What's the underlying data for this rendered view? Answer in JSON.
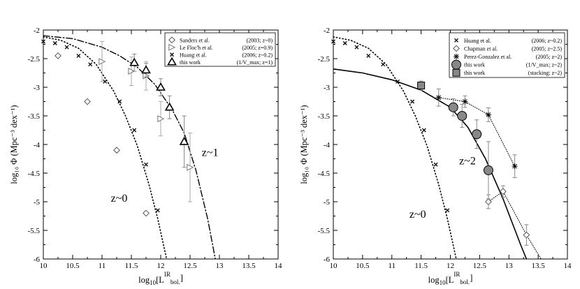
{
  "chart_data": [
    {
      "type": "scatter",
      "panel": "left",
      "xlabel_prefix": "log",
      "xlabel_sub": "10",
      "xlabel_body": "[L",
      "xlabel_sup": "IR",
      "xlabel_sub2": "bol.",
      "xlabel_close": "]",
      "ylabel": "log₁₀ Φ  (Mpc⁻³ dex⁻¹)",
      "xlim": [
        10,
        14
      ],
      "ylim": [
        -6,
        -2
      ],
      "xticks": [
        "10",
        "10.5",
        "11",
        "11.5",
        "12",
        "12.5",
        "13",
        "13.5",
        "14"
      ],
      "yticks": [
        "-6",
        "-5.5",
        "-5",
        "-4.5",
        "-4",
        "-3.5",
        "-3",
        "-2.5",
        "-2"
      ],
      "legend_position": "top-right",
      "annotations": [
        {
          "text": "z~0",
          "x": 11.15,
          "y": -5.0
        },
        {
          "text": "z~1",
          "x": 12.7,
          "y": -4.2
        }
      ],
      "series": [
        {
          "name": "Sanders et al.",
          "ref": "(2003; z~0)",
          "marker": "diamond",
          "points": [
            [
              10.25,
              -2.45
            ],
            [
              10.75,
              -3.25
            ],
            [
              11.25,
              -4.1
            ],
            [
              11.75,
              -5.2
            ]
          ]
        },
        {
          "name": "Le Floc'h et al.",
          "ref": "(2005; z=0.9)",
          "marker": "triangle-right",
          "points": [
            [
              11.0,
              -2.55,
              0.35
            ],
            [
              11.5,
              -2.72,
              0.25
            ],
            [
              11.75,
              -2.8,
              0.25
            ],
            [
              12.0,
              -3.55,
              0.3
            ],
            [
              12.5,
              -4.4,
              0.6
            ]
          ]
        },
        {
          "name": "Huang et al.",
          "ref": "(2006; z~0.2)",
          "marker": "x",
          "points": [
            [
              10.0,
              -2.2
            ],
            [
              10.2,
              -2.23
            ],
            [
              10.4,
              -2.3
            ],
            [
              10.6,
              -2.45
            ],
            [
              10.8,
              -2.6
            ],
            [
              11.05,
              -2.9
            ],
            [
              11.3,
              -3.25
            ],
            [
              11.55,
              -3.75
            ],
            [
              11.75,
              -4.35
            ],
            [
              11.95,
              -5.15
            ]
          ]
        },
        {
          "name": "this work",
          "ref": "(1/V_max; z=1)",
          "marker": "triangle",
          "points": [
            [
              11.55,
              -2.57,
              0.15
            ],
            [
              11.75,
              -2.7,
              0.12
            ],
            [
              12.0,
              -3.0,
              0.15
            ],
            [
              12.15,
              -3.35,
              0.2
            ],
            [
              12.4,
              -3.95,
              0.45
            ]
          ]
        }
      ],
      "curves": [
        {
          "style": "dotted",
          "label": "z~0 fit",
          "points": [
            [
              10.0,
              -2.12
            ],
            [
              10.3,
              -2.18
            ],
            [
              10.6,
              -2.32
            ],
            [
              10.9,
              -2.6
            ],
            [
              11.2,
              -3.07
            ],
            [
              11.4,
              -3.5
            ],
            [
              11.6,
              -4.02
            ],
            [
              11.8,
              -4.7
            ],
            [
              11.95,
              -5.3
            ],
            [
              12.1,
              -6.0
            ]
          ]
        },
        {
          "style": "dash-dot",
          "label": "z~1 fit",
          "points": [
            [
              10.0,
              -2.1
            ],
            [
              10.5,
              -2.15
            ],
            [
              11.0,
              -2.3
            ],
            [
              11.3,
              -2.45
            ],
            [
              11.6,
              -2.65
            ],
            [
              11.9,
              -2.95
            ],
            [
              12.2,
              -3.4
            ],
            [
              12.4,
              -3.8
            ],
            [
              12.6,
              -4.45
            ],
            [
              12.8,
              -5.3
            ],
            [
              12.93,
              -6.0
            ]
          ]
        }
      ]
    },
    {
      "type": "scatter",
      "panel": "right",
      "xlabel_prefix": "log",
      "xlabel_sub": "10",
      "xlabel_body": "[L",
      "xlabel_sup": "IR",
      "xlabel_sub2": "bol.",
      "xlabel_close": "]",
      "ylabel": "log₁₀ Φ  (Mpc⁻³ dex⁻¹)",
      "xlim": [
        10,
        14
      ],
      "ylim": [
        -6,
        -2
      ],
      "xticks": [
        "10",
        "10.5",
        "11",
        "11.5",
        "12",
        "12.5",
        "13",
        "13.5",
        "14"
      ],
      "yticks": [
        "-6",
        "-5.5",
        "-5",
        "-4.5",
        "-4",
        "-3.5",
        "-3",
        "-2.5",
        "-2"
      ],
      "legend_position": "top-right",
      "annotations": [
        {
          "text": "z~2",
          "x": 12.15,
          "y": -4.35
        },
        {
          "text": "z~0",
          "x": 11.3,
          "y": -5.28
        }
      ],
      "series": [
        {
          "name": "Huang et al.",
          "ref": "(2006;   z~0.2)",
          "marker": "x",
          "points": [
            [
              10.0,
              -2.2
            ],
            [
              10.2,
              -2.23
            ],
            [
              10.4,
              -2.3
            ],
            [
              10.6,
              -2.45
            ],
            [
              10.85,
              -2.6
            ],
            [
              11.1,
              -2.9
            ],
            [
              11.35,
              -3.25
            ],
            [
              11.55,
              -3.75
            ],
            [
              11.75,
              -4.35
            ],
            [
              11.95,
              -5.15
            ]
          ]
        },
        {
          "name": "Chapman et al.",
          "ref": "(2005;   z~2.5)",
          "marker": "diamond",
          "points": [
            [
              12.65,
              -5.0,
              0.12
            ],
            [
              12.9,
              -4.82,
              0.1
            ],
            [
              13.3,
              -5.58,
              0.18
            ]
          ]
        },
        {
          "name": "Perez-Gonzalez et al.",
          "ref": "(2005; z~2)",
          "marker": "asterisk",
          "points": [
            [
              11.8,
              -3.18,
              0.15
            ],
            [
              12.25,
              -3.25,
              0.1
            ],
            [
              12.65,
              -3.48,
              0.12
            ],
            [
              13.1,
              -4.38,
              0.2
            ]
          ]
        },
        {
          "name": "this work",
          "ref": "(1/V_max;   z~2)",
          "marker": "circle",
          "points": [
            [
              12.05,
              -3.35,
              0.15
            ],
            [
              12.2,
              -3.5,
              0.2
            ],
            [
              12.45,
              -3.82,
              0.25
            ],
            [
              12.65,
              -4.45,
              0.5
            ]
          ]
        },
        {
          "name": "this work",
          "ref": "(stacking;  z~2)",
          "marker": "square",
          "points": [
            [
              11.5,
              -2.97,
              0.08
            ]
          ]
        }
      ],
      "curves": [
        {
          "style": "dotted",
          "label": "z~0 fit",
          "points": [
            [
              10.0,
              -2.12
            ],
            [
              10.3,
              -2.18
            ],
            [
              10.6,
              -2.32
            ],
            [
              10.9,
              -2.6
            ],
            [
              11.2,
              -3.07
            ],
            [
              11.4,
              -3.5
            ],
            [
              11.6,
              -4.02
            ],
            [
              11.8,
              -4.7
            ],
            [
              11.95,
              -5.3
            ],
            [
              12.1,
              -6.0
            ]
          ]
        },
        {
          "style": "solid",
          "label": "z~2 fit",
          "points": [
            [
              10.0,
              -2.68
            ],
            [
              10.5,
              -2.75
            ],
            [
              11.0,
              -2.87
            ],
            [
              11.5,
              -3.05
            ],
            [
              12.0,
              -3.35
            ],
            [
              12.3,
              -3.7
            ],
            [
              12.6,
              -4.25
            ],
            [
              12.9,
              -4.95
            ],
            [
              13.2,
              -5.75
            ],
            [
              13.3,
              -6.0
            ]
          ]
        },
        {
          "style": "dotted-thin",
          "label": "z~2 Perez-Gonzalez",
          "points": [
            [
              11.8,
              -3.18
            ],
            [
              12.25,
              -3.25
            ],
            [
              12.65,
              -3.48
            ],
            [
              13.1,
              -4.38
            ]
          ]
        },
        {
          "style": "dotted-thin",
          "label": "z~2.5 Chapman",
          "points": [
            [
              12.65,
              -5.0
            ],
            [
              12.9,
              -4.82
            ],
            [
              13.3,
              -5.58
            ],
            [
              13.55,
              -6.0
            ]
          ]
        }
      ]
    }
  ]
}
